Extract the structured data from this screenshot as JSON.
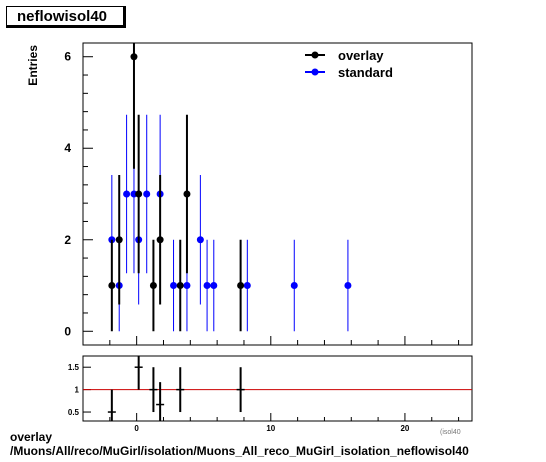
{
  "histogram_name": "neflowisol40",
  "footer": {
    "line1": "overlay",
    "line2": "/Muons/All/reco/MuGirl/isolation/Muons_All_reco_MuGirl_isolation_neflowisol40"
  },
  "colors": {
    "overlay": "#000000",
    "standard": "#0000ff",
    "ratio_reference_line": "#cc0000"
  },
  "chart_data": [
    {
      "type": "scatter",
      "ylabel": "Entries",
      "xlim": [
        -4,
        25
      ],
      "ylim": [
        -0.3,
        6.3
      ],
      "y_ticks": [
        0,
        2,
        4,
        6
      ],
      "legend": {
        "placement": "top-right",
        "entries": [
          "overlay",
          "standard"
        ]
      },
      "series": [
        {
          "name": "overlay",
          "marker": "filled-circle",
          "points": [
            {
              "x": -1.85,
              "y": 1
            },
            {
              "x": -1.3,
              "y": 2
            },
            {
              "x": -0.2,
              "y": 6
            },
            {
              "x": 0.15,
              "y": 3
            },
            {
              "x": 1.25,
              "y": 1
            },
            {
              "x": 1.75,
              "y": 2
            },
            {
              "x": 3.25,
              "y": 1
            },
            {
              "x": 3.75,
              "y": 3
            },
            {
              "x": 7.75,
              "y": 1
            }
          ]
        },
        {
          "name": "standard",
          "marker": "filled-circle",
          "points": [
            {
              "x": -1.85,
              "y": 2
            },
            {
              "x": -1.3,
              "y": 1
            },
            {
              "x": -0.75,
              "y": 3
            },
            {
              "x": -0.2,
              "y": 3
            },
            {
              "x": 0.15,
              "y": 2
            },
            {
              "x": 0.75,
              "y": 3
            },
            {
              "x": 1.75,
              "y": 3
            },
            {
              "x": 2.75,
              "y": 1
            },
            {
              "x": 3.75,
              "y": 1
            },
            {
              "x": 4.75,
              "y": 2
            },
            {
              "x": 5.25,
              "y": 1
            },
            {
              "x": 5.75,
              "y": 1
            },
            {
              "x": 8.25,
              "y": 1
            },
            {
              "x": 11.75,
              "y": 1
            },
            {
              "x": 15.75,
              "y": 1
            }
          ]
        }
      ]
    },
    {
      "type": "scatter",
      "xlim": [
        -4,
        25
      ],
      "ylim": [
        0.3,
        1.75
      ],
      "x_ticks": [
        0,
        10,
        20
      ],
      "y_ticks": [
        0.5,
        1,
        1.5
      ],
      "xlabel_cropped": "(isol40",
      "reference_line": 1,
      "series": [
        {
          "name": "overlay / standard",
          "points": [
            {
              "x": -1.85,
              "y": 0.5
            },
            {
              "x": 0.15,
              "y": 1.5
            },
            {
              "x": 1.25,
              "y": 1
            },
            {
              "x": 1.75,
              "y": 0.667
            },
            {
              "x": 3.25,
              "y": 1
            },
            {
              "x": 7.75,
              "y": 1
            }
          ]
        }
      ]
    }
  ]
}
